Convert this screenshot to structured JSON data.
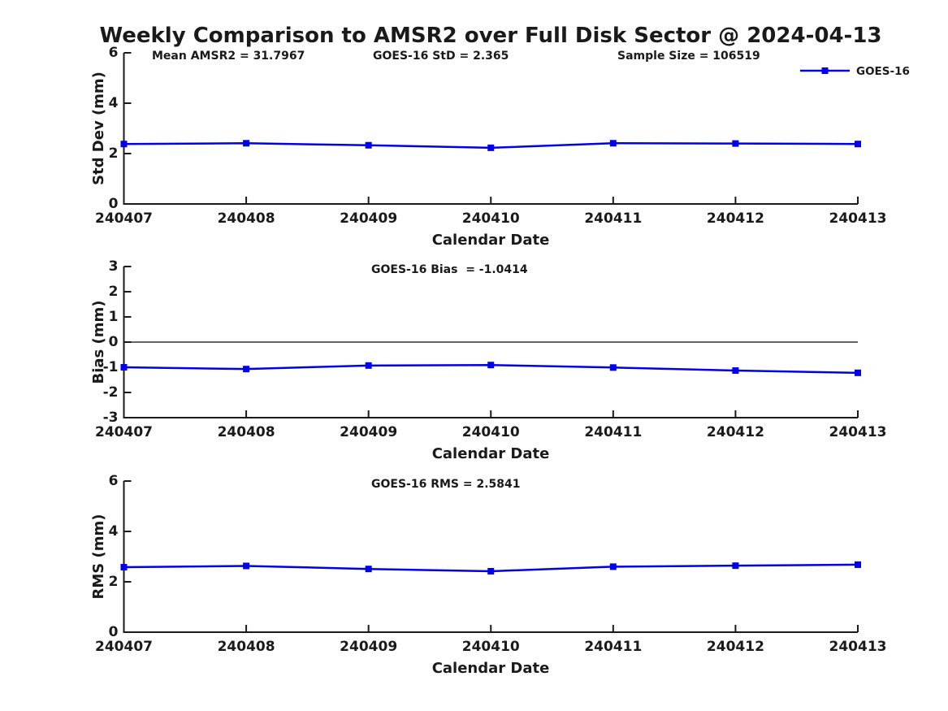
{
  "page_title": "Weekly Comparison to AMSR2 over Full Disk Sector @ 2024-04-13",
  "colors": {
    "series": "#0000EE",
    "zero_line": "#666666",
    "axis": "#1a1a1a",
    "background": "#ffffff"
  },
  "legend": {
    "label": "GOES-16",
    "position": "top-right",
    "marker": "square",
    "color": "#0000EE"
  },
  "chart_data": [
    {
      "type": "line",
      "name": "std-dev",
      "ylabel": "Std Dev (mm)",
      "xlabel": "Calendar Date",
      "categories": [
        "240407",
        "240408",
        "240409",
        "240410",
        "240411",
        "240412",
        "240413"
      ],
      "series": [
        {
          "name": "GOES-16",
          "color": "#0000EE",
          "values": [
            2.38,
            2.41,
            2.33,
            2.23,
            2.41,
            2.4,
            2.38
          ]
        }
      ],
      "ylim": [
        0,
        6
      ],
      "yticks": [
        0,
        2,
        4,
        6
      ],
      "grid": false,
      "annotations": [
        "Mean AMSR2 = 31.7967",
        "GOES-16 StD = 2.365",
        "Sample Size = 106519"
      ]
    },
    {
      "type": "line",
      "name": "bias",
      "ylabel": "Bias (mm)",
      "xlabel": "Calendar Date",
      "categories": [
        "240407",
        "240408",
        "240409",
        "240410",
        "240411",
        "240412",
        "240413"
      ],
      "series": [
        {
          "name": "GOES-16",
          "color": "#0000EE",
          "values": [
            -1.0,
            -1.07,
            -0.93,
            -0.91,
            -1.01,
            -1.13,
            -1.22
          ]
        }
      ],
      "ylim": [
        -3,
        3
      ],
      "yticks": [
        -3,
        -2,
        -1,
        0,
        1,
        2,
        3
      ],
      "zero_line": true,
      "grid": false,
      "annotations": [
        "GOES-16 Bias  = -1.0414"
      ]
    },
    {
      "type": "line",
      "name": "rms",
      "ylabel": "RMS (mm)",
      "xlabel": "Calendar Date",
      "categories": [
        "240407",
        "240408",
        "240409",
        "240410",
        "240411",
        "240412",
        "240413"
      ],
      "series": [
        {
          "name": "GOES-16",
          "color": "#0000EE",
          "values": [
            2.58,
            2.63,
            2.51,
            2.42,
            2.6,
            2.64,
            2.68
          ]
        }
      ],
      "ylim": [
        0,
        6
      ],
      "yticks": [
        0,
        2,
        4,
        6
      ],
      "grid": false,
      "annotations": [
        "GOES-16 RMS = 2.5841"
      ]
    }
  ]
}
